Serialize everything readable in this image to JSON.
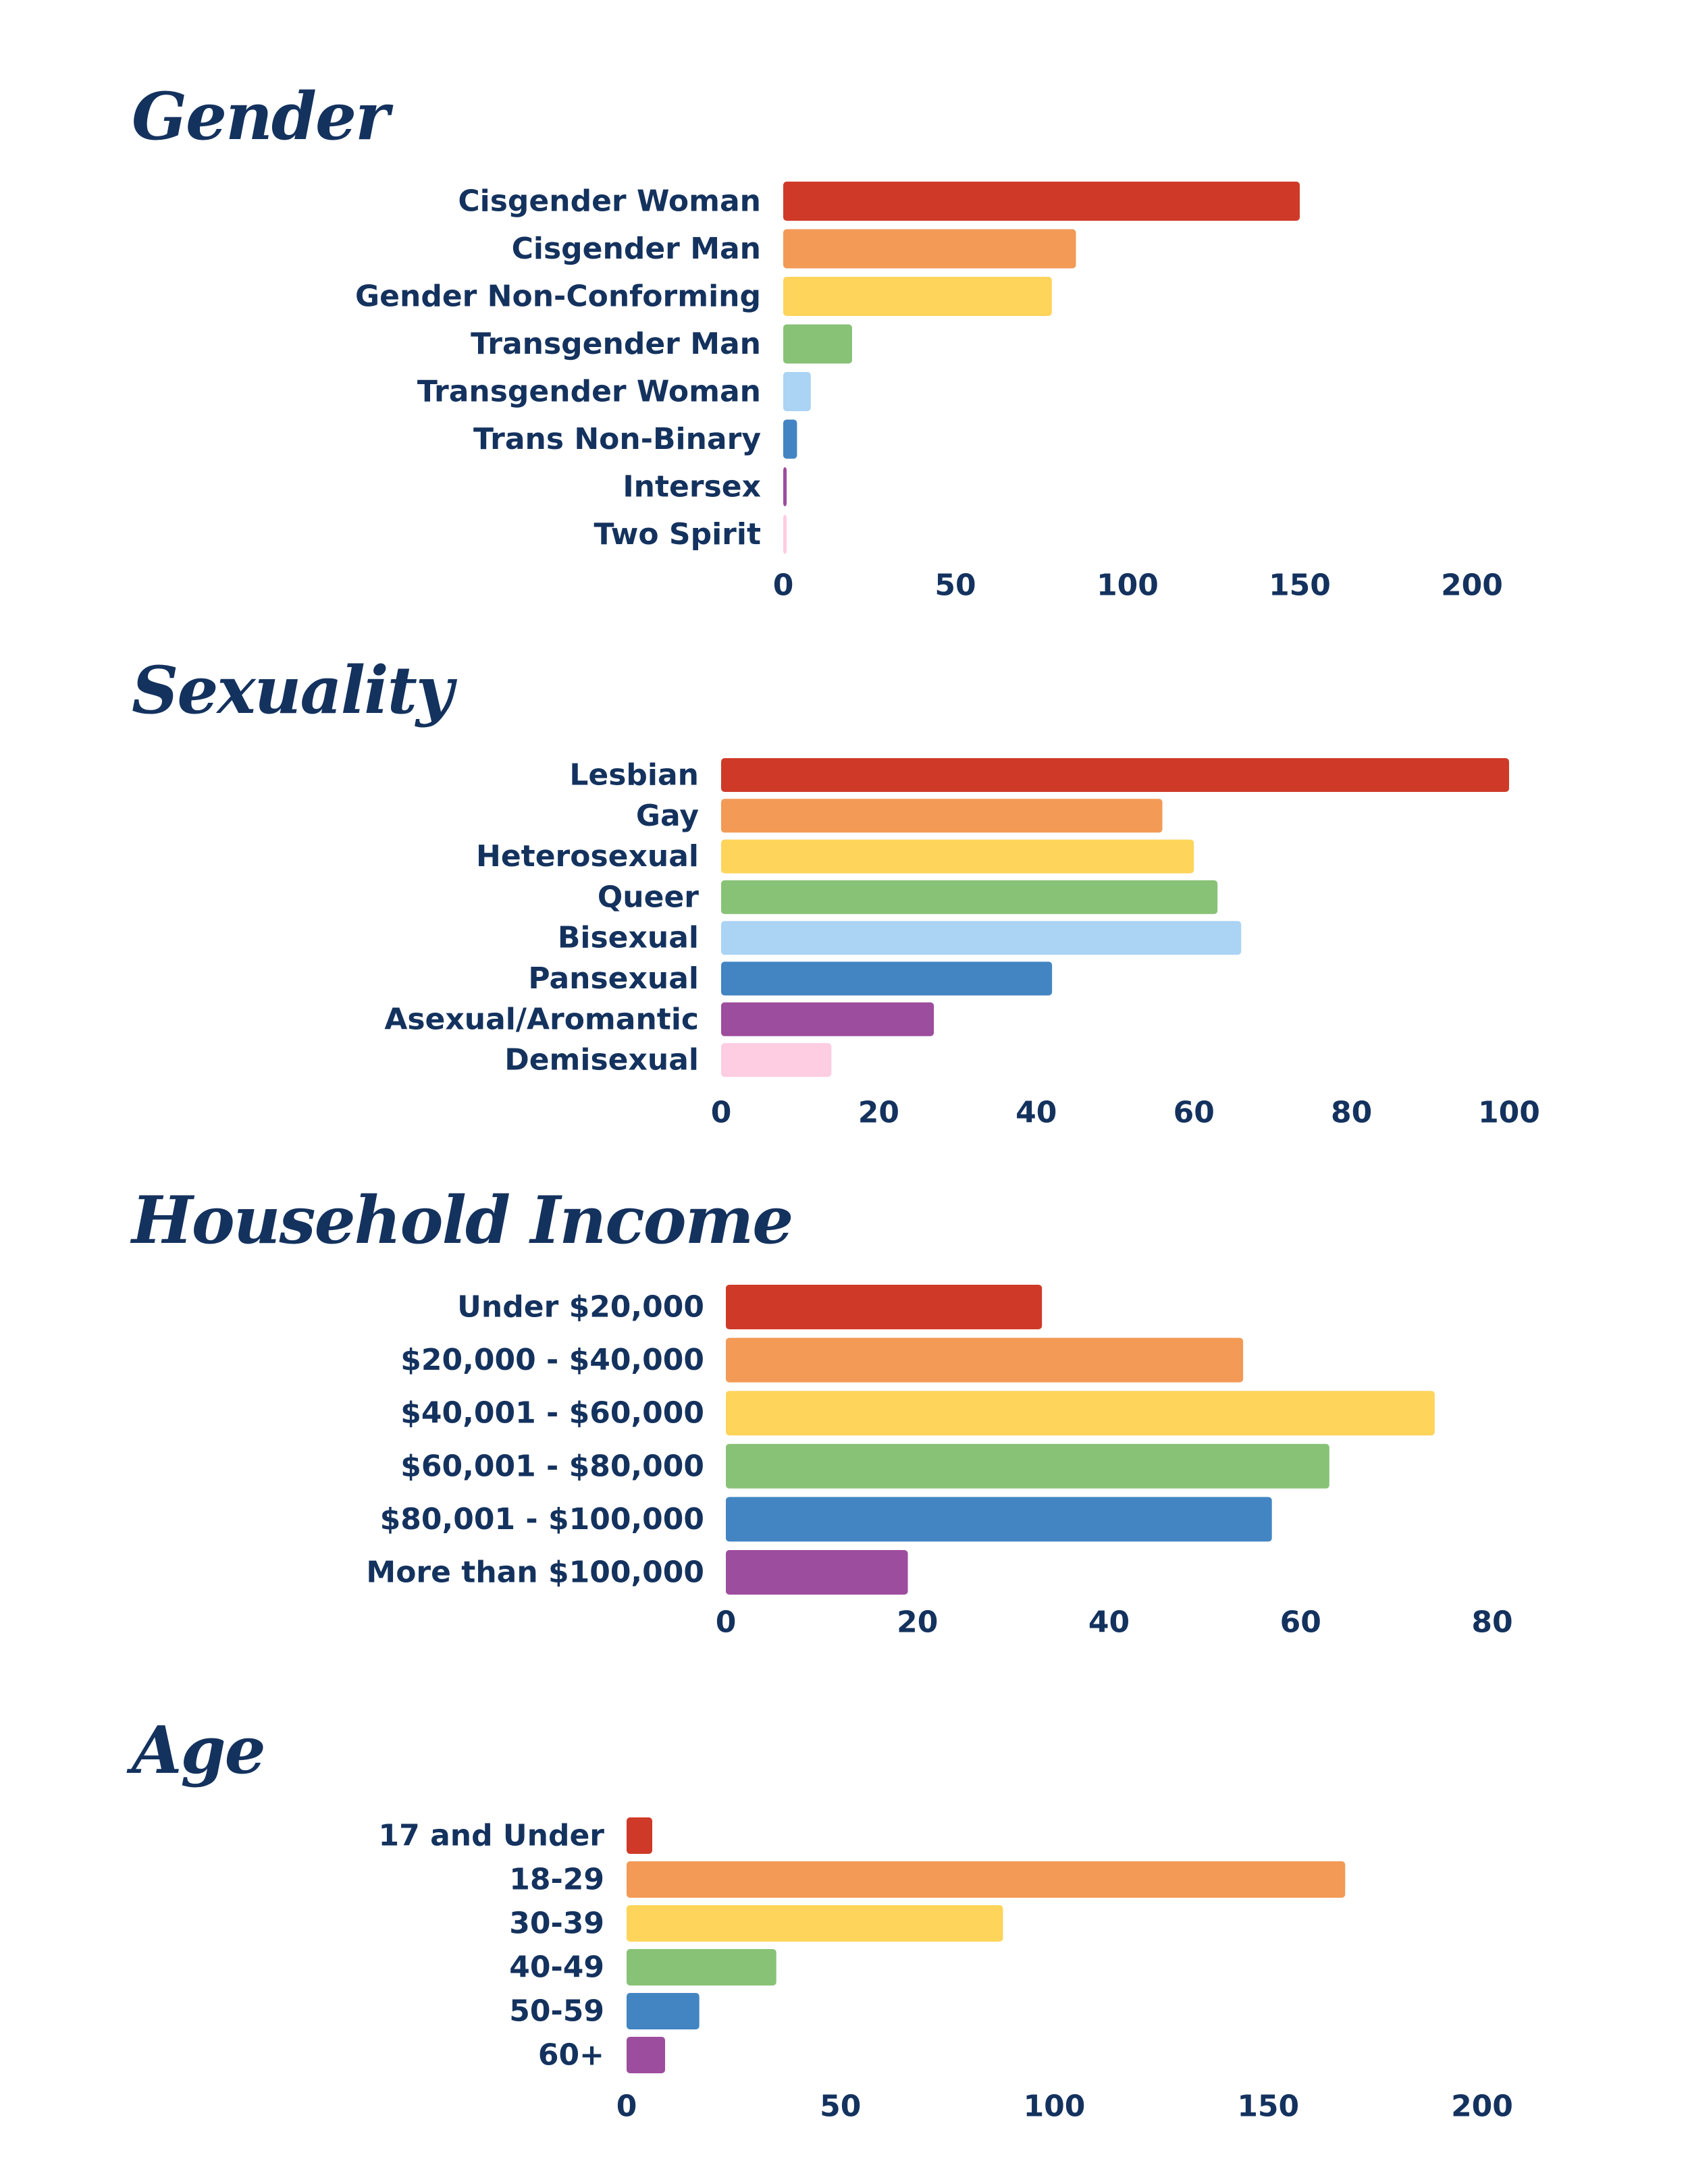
{
  "palette": [
    "#cf3a28",
    "#f29a56",
    "#fed45a",
    "#88c276",
    "#aad3f4",
    "#4285c2",
    "#9d4d9d",
    "#fecde2"
  ],
  "chart_data": [
    {
      "id": "gender",
      "type": "bar",
      "orientation": "horizontal",
      "title": "Gender",
      "categories": [
        "Cisgender Woman",
        "Cisgender Man",
        "Gender Non-Conforming",
        "Transgender Man",
        "Transgender Woman",
        "Trans Non-Binary",
        "Intersex",
        "Two Spirit"
      ],
      "values": [
        150,
        85,
        78,
        20,
        8,
        4,
        1,
        1
      ],
      "colors": [
        "#cf3a28",
        "#f29a56",
        "#fed45a",
        "#88c276",
        "#aad3f4",
        "#4285c2",
        "#9d4d9d",
        "#fecde2"
      ],
      "xlim": [
        0,
        200
      ],
      "xticks": [
        0,
        50,
        100,
        150,
        200
      ],
      "xlabel": "",
      "ylabel": "",
      "grid": false
    },
    {
      "id": "sexuality",
      "type": "bar",
      "orientation": "horizontal",
      "title": "Sexuality",
      "categories": [
        "Lesbian",
        "Gay",
        "Heterosexual",
        "Queer",
        "Bisexual",
        "Pansexual",
        "Asexual/Aromantic",
        "Demisexual"
      ],
      "values": [
        100,
        56,
        60,
        63,
        66,
        42,
        27,
        14
      ],
      "colors": [
        "#cf3a28",
        "#f29a56",
        "#fed45a",
        "#88c276",
        "#aad3f4",
        "#4285c2",
        "#9d4d9d",
        "#fecde2"
      ],
      "xlim": [
        0,
        100
      ],
      "xticks": [
        0,
        20,
        40,
        60,
        80,
        100
      ],
      "xlabel": "",
      "ylabel": "",
      "grid": false
    },
    {
      "id": "income",
      "type": "bar",
      "orientation": "horizontal",
      "title": "Household Income",
      "categories": [
        "Under $20,000",
        "$20,000 - $40,000",
        "$40,001 - $60,000",
        "$60,001 - $80,000",
        "$80,001 - $100,000",
        "More than $100,000"
      ],
      "values": [
        33,
        54,
        74,
        63,
        57,
        19
      ],
      "colors": [
        "#cf3a28",
        "#f29a56",
        "#fed45a",
        "#88c276",
        "#4285c2",
        "#9d4d9d"
      ],
      "xlim": [
        0,
        80
      ],
      "xticks": [
        0,
        20,
        40,
        60,
        80
      ],
      "xlabel": "",
      "ylabel": "",
      "grid": false
    },
    {
      "id": "age",
      "type": "bar",
      "orientation": "horizontal",
      "title": "Age",
      "categories": [
        "17 and Under",
        "18-29",
        "30-39",
        "40-49",
        "50-59",
        "60+"
      ],
      "values": [
        6,
        168,
        88,
        35,
        17,
        9
      ],
      "colors": [
        "#cf3a28",
        "#f29a56",
        "#fed45a",
        "#88c276",
        "#4285c2",
        "#9d4d9d"
      ],
      "xlim": [
        0,
        200
      ],
      "xticks": [
        0,
        50,
        100,
        150,
        200
      ],
      "xlabel": "",
      "ylabel": "",
      "grid": false
    }
  ]
}
